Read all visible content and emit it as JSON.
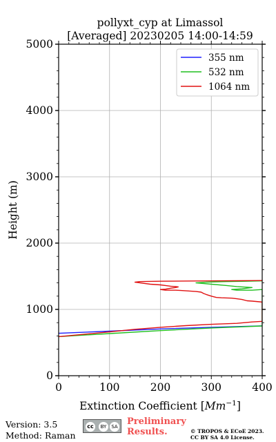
{
  "chart_data": {
    "type": "line",
    "title": "pollyxt_cyp at Limassol",
    "subtitle": "[Averaged] 20230205 14:00-14:59",
    "xlabel": "Extinction Coefficient [",
    "xlabel_unit": "Mm",
    "xlabel_exp": "−1",
    "xlabel_end": "]",
    "ylabel": "Height (m)",
    "xlim": [
      0,
      400
    ],
    "ylim": [
      0,
      5000
    ],
    "xticks": [
      "0",
      "100",
      "200",
      "300",
      "400"
    ],
    "yticks": [
      "0",
      "1000",
      "2000",
      "3000",
      "4000",
      "5000"
    ],
    "grid": true,
    "legend_position": "top-right",
    "series": [
      {
        "name": "355 nm",
        "color": "#1f1fff",
        "x": [
          0,
          100,
          200,
          300,
          400
        ],
        "y": [
          640,
          672,
          705,
          730,
          752
        ]
      },
      {
        "name": "532 nm",
        "color": "#1fbf1f",
        "x": [
          0,
          100,
          200,
          300,
          400,
          400,
          380,
          350,
          340,
          360,
          380,
          350,
          330,
          300,
          270,
          290,
          330,
          370,
          400
        ],
        "y": [
          590,
          635,
          680,
          720,
          750,
          1300,
          1290,
          1290,
          1300,
          1310,
          1330,
          1345,
          1360,
          1380,
          1400,
          1410,
          1420,
          1425,
          1430
        ]
      },
      {
        "name": "1064 nm",
        "color": "#e01010",
        "x": [
          0,
          100,
          150,
          200,
          250,
          300,
          350,
          380,
          400,
          400,
          395,
          380,
          370,
          360,
          350,
          340,
          320,
          310,
          300,
          290,
          285,
          280,
          270,
          260,
          250,
          240,
          230,
          210,
          200,
          210,
          220,
          230,
          235,
          230,
          220,
          210,
          200,
          180,
          160,
          150,
          160,
          200,
          250,
          300,
          350,
          380,
          400
        ],
        "y": [
          590,
          660,
          700,
          730,
          755,
          775,
          790,
          810,
          820,
          1110,
          1115,
          1125,
          1130,
          1150,
          1160,
          1170,
          1175,
          1180,
          1200,
          1225,
          1240,
          1260,
          1270,
          1275,
          1280,
          1285,
          1290,
          1290,
          1300,
          1305,
          1320,
          1330,
          1340,
          1345,
          1350,
          1360,
          1370,
          1380,
          1400,
          1410,
          1420,
          1425,
          1428,
          1430,
          1432,
          1434,
          1435
        ]
      }
    ]
  },
  "footer": {
    "version": "Version: 3.5",
    "method": "Method: Raman",
    "preliminary_line1": "Preliminary",
    "preliminary_line2": "Results.",
    "copyright_line1": "© TROPOS & ECoE 2023.",
    "copyright_line2": "CC BY SA 4.0 License.",
    "cc_mark": "cc",
    "by_mark": "BY",
    "sa_mark": "SA"
  }
}
